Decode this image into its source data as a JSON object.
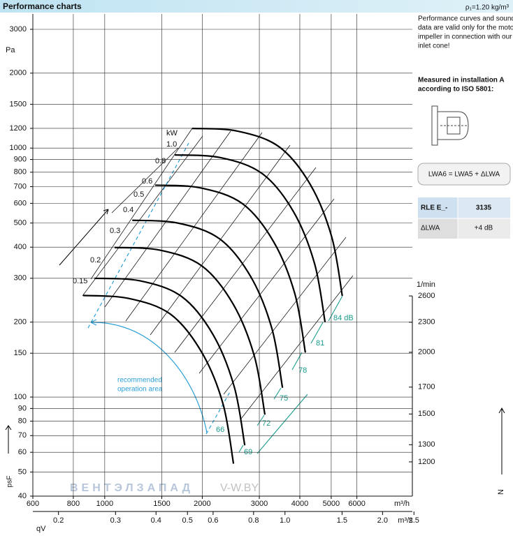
{
  "chart_data": {
    "type": "line",
    "title": "Performance charts",
    "subtitle": "ρ₁=1.20 kg/m³",
    "y_unit": "Pa",
    "y_axis_label": "psF",
    "x_unit": "m³/h",
    "x2_unit": "m³/s",
    "x_axis_label": "qV",
    "y2_unit": "1/min",
    "log_scale": true,
    "grid": true,
    "xlim": [
      600,
      8900
    ],
    "xticks": [
      600,
      800,
      1000,
      1500,
      2000,
      3000,
      4000,
      5000,
      6000
    ],
    "x2lim": [
      0.1667,
      2.472
    ],
    "x2ticks": [
      0.2,
      0.3,
      0.4,
      0.5,
      0.6,
      0.8,
      {
        "value": 1,
        "label": "1.0"
      },
      1.5,
      {
        "value": 2,
        "label": "2.0"
      },
      2.5
    ],
    "ylim": [
      40,
      3000
    ],
    "yticks": [
      3000,
      2000,
      1500,
      1200,
      1000,
      900,
      800,
      700,
      600,
      500,
      400,
      300,
      200,
      150,
      100,
      90,
      80,
      70,
      60,
      50,
      40
    ],
    "y2lim": [
      1023,
      9005
    ],
    "y2ticks": [
      2600,
      2300,
      2000,
      1700,
      1500,
      1300,
      1200
    ],
    "series": [
      {
        "color": "#000000",
        "x": [
          1860,
          2570,
          3460,
          4320,
          5020,
          5410
        ],
        "values": [
          1200,
          1170,
          1010,
          710,
          439,
          255
        ]
      },
      {
        "color": "#000000",
        "x": [
          1645,
          2273,
          3061,
          3822,
          4441,
          4786
        ],
        "values": [
          939,
          916,
          790,
          556,
          344,
          200
        ]
      },
      {
        "color": "#000000",
        "x": [
          1431,
          1977,
          2661,
          3323,
          3861,
          4161
        ],
        "values": [
          710,
          692,
          598,
          420,
          260,
          151
        ]
      },
      {
        "color": "#000000",
        "x": [
          1216,
          1680,
          2262,
          2824,
          3282,
          3537
        ],
        "values": [
          513,
          500,
          432,
          304,
          188,
          109
        ]
      },
      {
        "color": "#000000",
        "x": [
          1073,
          1483,
          1996,
          2492,
          2896,
          3121
        ],
        "values": [
          399,
          389,
          336,
          236,
          146,
          85
        ]
      },
      {
        "color": "#000000",
        "x": [
          930,
          1285,
          1730,
          2160,
          2510,
          2705
        ],
        "values": [
          300,
          293,
          253,
          178,
          110,
          64
        ]
      },
      {
        "color": "#000000",
        "x": [
          858,
          1186,
          1597,
          1994,
          2317,
          2497
        ],
        "values": [
          256,
          249,
          215,
          151,
          94,
          54
        ]
      }
    ],
    "power_labels": [
      "kW",
      "1.0",
      "0.8",
      "0.6",
      "0.5",
      "0.4",
      "0.3",
      "0.2",
      "0.15"
    ],
    "sound_labels": [
      "84 dB",
      "81",
      "78",
      "75",
      "72",
      "69",
      "66"
    ],
    "area_label": [
      "recommended",
      "operation area"
    ]
  },
  "notes": {
    "validity": [
      "Performance curves and sound",
      "data are valid only for the motor",
      "impeller in connection with our",
      "inlet cone!"
    ],
    "measured": [
      "Measured in installation A",
      "according to ISO 5801:"
    ],
    "formula": "LWA6 = LWA5 + ΔLWA"
  },
  "table": {
    "rows": [
      [
        "RLE E_-",
        "3135"
      ],
      [
        "ΔLWA",
        "+4 dB"
      ]
    ]
  },
  "watermark": [
    "ВЕНТЭЛЗАПАД",
    "V-W.BY"
  ],
  "direction_label": "N"
}
